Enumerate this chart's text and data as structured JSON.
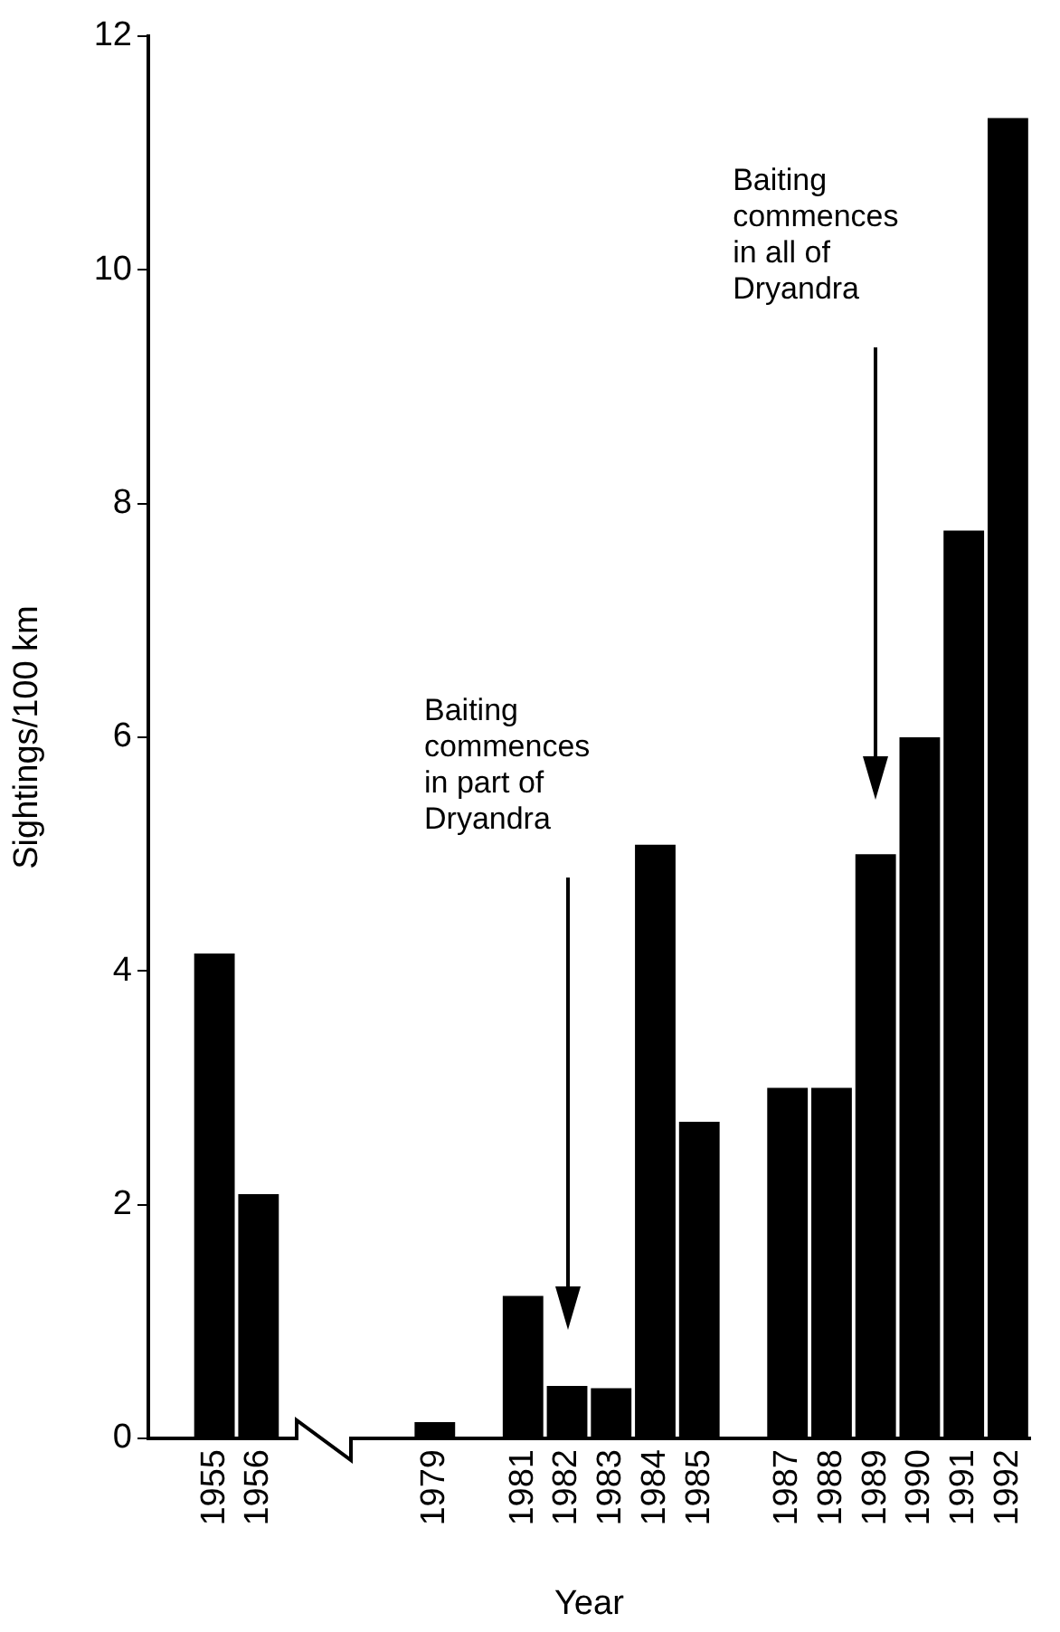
{
  "chart_data": {
    "type": "bar",
    "xlabel": "Year",
    "ylabel": "Sightings/100 km",
    "categories": [
      null,
      "1955",
      "1956",
      null,
      null,
      null,
      "1979",
      null,
      "1981",
      "1982",
      "1983",
      "1984",
      "1985",
      null,
      "1987",
      "1988",
      "1989",
      "1990",
      "1991",
      "1992"
    ],
    "values": [
      null,
      4.15,
      2.09,
      null,
      null,
      null,
      0.14,
      null,
      1.22,
      0.45,
      0.43,
      5.08,
      2.71,
      null,
      3.0,
      3.0,
      5.0,
      6.0,
      7.77,
      11.3
    ],
    "color": "#000000",
    "ylim": [
      0,
      12
    ],
    "yticks": [
      0,
      2,
      4,
      6,
      8,
      10,
      12
    ],
    "grid": false,
    "annotations": [
      "Baiting\ncommences\nin part of\nDryandra",
      "Baiting\ncommences\nin all of\nDryandra"
    ]
  }
}
